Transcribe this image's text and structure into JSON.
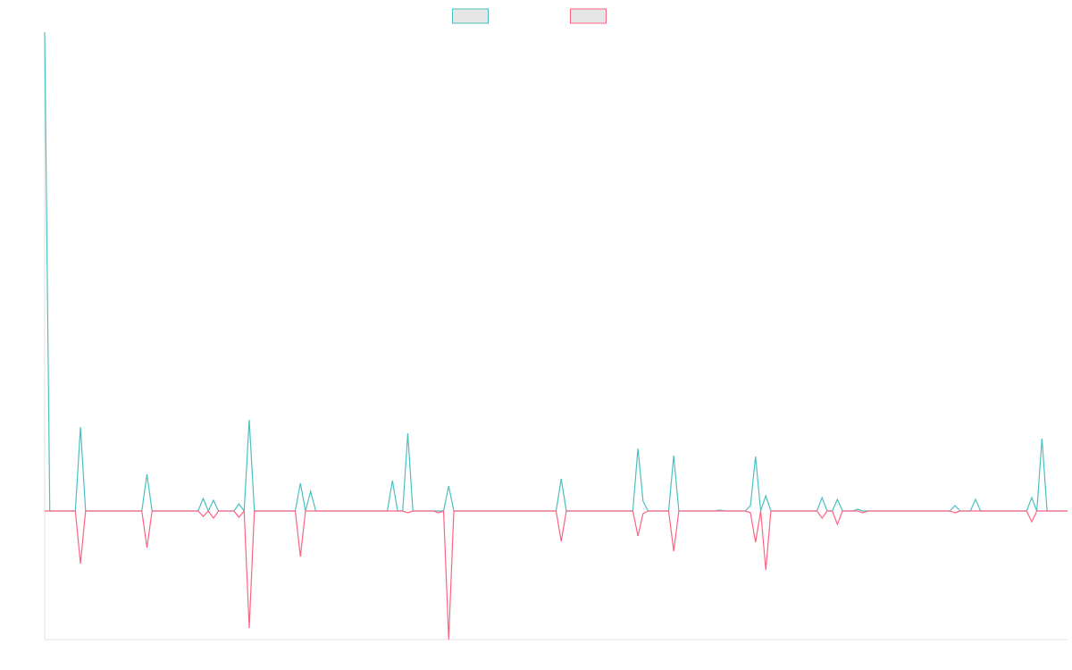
{
  "chart_data": {
    "type": "line",
    "ylim": [
      -144,
      536
    ],
    "legend": "top",
    "series": [
      {
        "color": "#4bc0c0",
        "values": [
          536,
          0,
          0,
          0,
          0,
          0,
          0,
          94,
          0,
          0,
          0,
          0,
          0,
          0,
          0,
          0,
          0,
          0,
          0,
          0,
          41,
          0,
          0,
          0,
          0,
          0,
          0,
          0,
          0,
          0,
          0,
          14,
          0,
          12,
          0,
          0,
          0,
          0,
          8,
          0,
          102,
          0,
          0,
          0,
          0,
          0,
          0,
          0,
          0,
          0,
          31,
          0,
          22,
          0,
          0,
          0,
          0,
          0,
          0,
          0,
          0,
          0,
          0,
          0,
          0,
          0,
          0,
          0,
          34,
          0,
          0,
          87,
          0,
          0,
          0,
          0,
          0,
          0,
          0,
          28,
          0,
          0,
          0,
          0,
          0,
          0,
          0,
          0,
          0,
          0,
          0,
          0,
          0,
          0,
          0,
          0,
          0,
          0,
          0,
          0,
          0,
          36,
          0,
          0,
          0,
          0,
          0,
          0,
          0,
          0,
          0,
          0,
          0,
          0,
          0,
          0,
          70,
          11,
          0,
          0,
          0,
          0,
          0,
          62,
          0,
          0,
          0,
          0,
          0,
          0,
          0,
          0,
          1,
          0,
          0,
          0,
          0,
          0,
          6,
          61,
          0,
          17,
          0,
          0,
          0,
          0,
          0,
          0,
          0,
          0,
          0,
          0,
          15,
          0,
          0,
          13,
          0,
          0,
          0,
          2,
          0,
          0,
          0,
          0,
          0,
          0,
          0,
          0,
          0,
          0,
          0,
          0,
          0,
          0,
          0,
          0,
          0,
          0,
          6,
          0,
          0,
          0,
          13,
          0,
          0,
          0,
          0,
          0,
          0,
          0,
          0,
          0,
          0,
          15,
          0,
          81,
          0,
          0,
          0,
          0,
          0
        ]
      },
      {
        "color": "#ff6384",
        "values": [
          0,
          0,
          0,
          0,
          0,
          0,
          0,
          -59,
          0,
          0,
          0,
          0,
          0,
          0,
          0,
          0,
          0,
          0,
          0,
          0,
          -41,
          0,
          0,
          0,
          0,
          0,
          0,
          0,
          0,
          0,
          0,
          -6,
          0,
          -8,
          0,
          0,
          0,
          0,
          -7,
          0,
          -131,
          0,
          0,
          0,
          0,
          0,
          0,
          0,
          0,
          0,
          -51,
          0,
          0,
          0,
          0,
          0,
          0,
          0,
          0,
          0,
          0,
          0,
          0,
          0,
          0,
          0,
          0,
          0,
          0,
          0,
          0,
          -2,
          0,
          0,
          0,
          0,
          0,
          -2,
          0,
          -144,
          0,
          0,
          0,
          0,
          0,
          0,
          0,
          0,
          0,
          0,
          0,
          0,
          0,
          0,
          0,
          0,
          0,
          0,
          0,
          0,
          0,
          -34,
          0,
          0,
          0,
          0,
          0,
          0,
          0,
          0,
          0,
          0,
          0,
          0,
          0,
          0,
          -28,
          -3,
          0,
          0,
          0,
          0,
          0,
          -45,
          0,
          0,
          0,
          0,
          0,
          0,
          0,
          0,
          0,
          0,
          0,
          0,
          0,
          0,
          -2,
          -35,
          0,
          -66,
          0,
          0,
          0,
          0,
          0,
          0,
          0,
          0,
          0,
          0,
          -8,
          0,
          0,
          -15,
          0,
          0,
          0,
          0,
          -2,
          0,
          0,
          0,
          0,
          0,
          0,
          0,
          0,
          0,
          0,
          0,
          0,
          0,
          0,
          0,
          0,
          0,
          -2,
          0,
          0,
          0,
          0,
          0,
          0,
          0,
          0,
          0,
          0,
          0,
          0,
          0,
          0,
          -12,
          0,
          0,
          0,
          0,
          0,
          0,
          0
        ]
      }
    ]
  }
}
